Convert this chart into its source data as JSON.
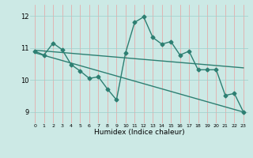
{
  "title": "",
  "xlabel": "Humidex (Indice chaleur)",
  "bg_color": "#cce9e5",
  "line_color": "#2d7f72",
  "grid_color_v": "#e8a0a0",
  "grid_color_h": "#9ecfca",
  "xlim": [
    -0.5,
    23.5
  ],
  "ylim": [
    8.65,
    12.35
  ],
  "yticks": [
    9,
    10,
    11,
    12
  ],
  "xticks": [
    0,
    1,
    2,
    3,
    4,
    5,
    6,
    7,
    8,
    9,
    10,
    11,
    12,
    13,
    14,
    15,
    16,
    17,
    18,
    19,
    20,
    21,
    22,
    23
  ],
  "line1_x": [
    0,
    1,
    2,
    3,
    4,
    5,
    6,
    7,
    8,
    9,
    10,
    11,
    12,
    13,
    14,
    15,
    16,
    17,
    18,
    19,
    20,
    21,
    22,
    23
  ],
  "line1_y": [
    10.9,
    10.78,
    11.15,
    10.95,
    10.48,
    10.28,
    10.05,
    10.1,
    9.72,
    9.38,
    10.85,
    11.8,
    11.97,
    11.33,
    11.12,
    11.2,
    10.78,
    10.9,
    10.32,
    10.32,
    10.32,
    9.52,
    9.58,
    9.0
  ],
  "line2_x": [
    0,
    23
  ],
  "line2_y": [
    10.93,
    10.38
  ],
  "line3_x": [
    0,
    23
  ],
  "line3_y": [
    10.85,
    9.0
  ],
  "markersize": 2.5,
  "linewidth": 1.0
}
